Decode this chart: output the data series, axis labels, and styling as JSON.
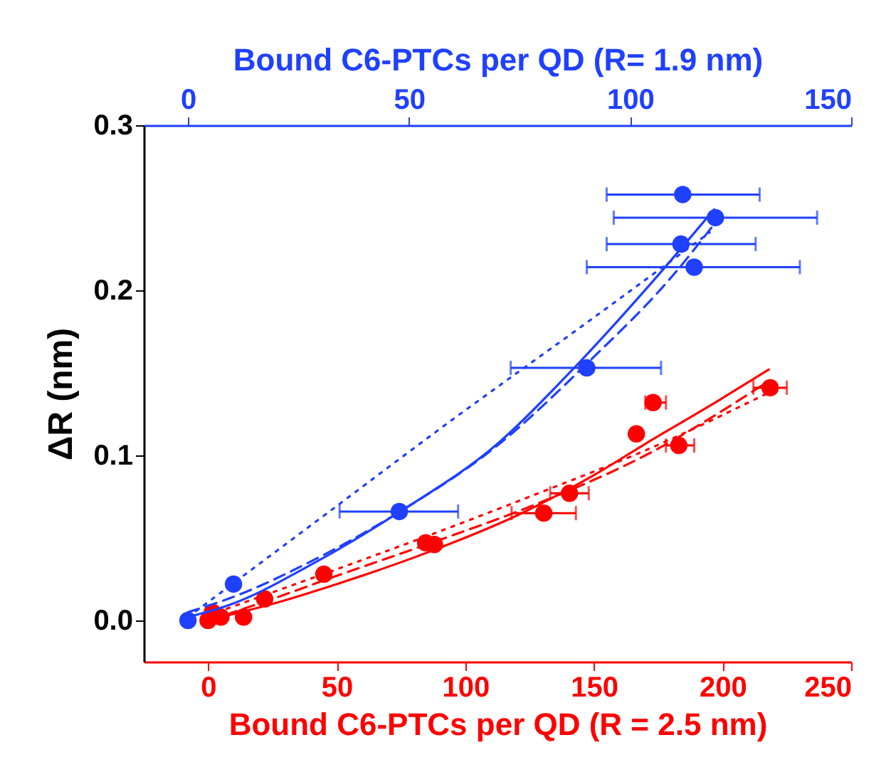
{
  "chart_data": {
    "type": "scatter",
    "xlabel": "Bound C6-PTCs per QD (R = 2.5 nm)",
    "x2label": "Bound C6-PTCs per QD (R= 1.9 nm)",
    "ylabel": "ΔR (nm)",
    "xlim": [
      -25,
      250
    ],
    "xticks": [
      0,
      50,
      100,
      150,
      200,
      250
    ],
    "x2lim": [
      -10,
      150
    ],
    "x2ticks": [
      0,
      50,
      100,
      150
    ],
    "ylim": [
      -0.025,
      0.3
    ],
    "yticks": [
      {
        "value": 0,
        "label": "0.0"
      },
      {
        "value": 0.1,
        "label": "0.1"
      },
      {
        "value": 0.2,
        "label": "0.2"
      },
      {
        "value": 0.3,
        "label": "0.3"
      }
    ],
    "series": [
      {
        "type": "line",
        "axis": "x2",
        "color": "#2040ff",
        "line_style": "solid",
        "x": [
          0,
          10,
          28,
          48,
          70,
          87,
          105,
          119
        ],
        "values": [
          0.002,
          0.01,
          0.034,
          0.066,
          0.107,
          0.152,
          0.205,
          0.249
        ]
      },
      {
        "type": "line",
        "axis": "x2",
        "color": "#2040ff",
        "line_style": "dashed",
        "x": [
          0,
          10,
          28,
          48,
          70,
          90,
          110,
          119
        ],
        "values": [
          0.005,
          0.014,
          0.036,
          0.066,
          0.106,
          0.155,
          0.21,
          0.24
        ]
      },
      {
        "type": "line",
        "axis": "x2",
        "color": "#2040ff",
        "line_style": "dotted",
        "x": [
          0,
          30,
          60,
          90,
          118
        ],
        "values": [
          0.002,
          0.062,
          0.122,
          0.18,
          0.235
        ]
      },
      {
        "axis": "x2",
        "marker": "circle",
        "color": "#2040ff",
        "x": [
          0,
          10.3,
          47.8,
          90.2,
          111.9,
          119.3,
          111.5,
          114.5
        ],
        "values": [
          0,
          0.022,
          0.066,
          0.153,
          0.258,
          0.244,
          0.228,
          0.214
        ],
        "xerrors": [
          null,
          null,
          [
            34.3,
            61.1
          ],
          [
            73,
            107
          ],
          [
            94.7,
            129.3
          ],
          [
            96.3,
            142.3
          ],
          [
            94.7,
            128.4
          ],
          [
            90.2,
            138.4
          ]
        ]
      },
      {
        "type": "line",
        "color": "#ff0000",
        "line_style": "solid",
        "x": [
          5,
          25,
          50,
          85,
          122,
          150,
          170,
          195,
          218
        ],
        "values": [
          0.002,
          0.01,
          0.022,
          0.041,
          0.065,
          0.088,
          0.107,
          0.13,
          0.152
        ]
      },
      {
        "type": "line",
        "color": "#ff0000",
        "line_style": "dashed",
        "x": [
          0,
          25,
          50,
          85,
          130,
          170,
          218
        ],
        "values": [
          0,
          0.013,
          0.027,
          0.046,
          0.072,
          0.1,
          0.145
        ]
      },
      {
        "type": "line",
        "color": "#ff0000",
        "line_style": "dotted",
        "x": [
          0,
          25,
          50,
          85,
          130,
          170,
          218
        ],
        "values": [
          0.003,
          0.017,
          0.031,
          0.051,
          0.078,
          0.103,
          0.138
        ]
      },
      {
        "marker": "circle",
        "color": "#ff0000",
        "x": [
          0,
          1.7,
          5,
          13.8,
          22,
          45,
          84.6,
          88,
          130.5,
          140.5,
          166.5,
          183,
          173,
          218.5
        ],
        "values": [
          0,
          0.005,
          0.002,
          0.002,
          0.013,
          0.028,
          0.047,
          0.046,
          0.065,
          0.077,
          0.113,
          0.106,
          0.132,
          0.141
        ],
        "xerrors": [
          null,
          null,
          null,
          null,
          null,
          null,
          null,
          null,
          [
            118,
            143
          ],
          [
            133,
            148
          ],
          null,
          [
            178,
            189
          ],
          [
            170,
            178
          ],
          [
            212,
            225
          ]
        ]
      }
    ]
  }
}
